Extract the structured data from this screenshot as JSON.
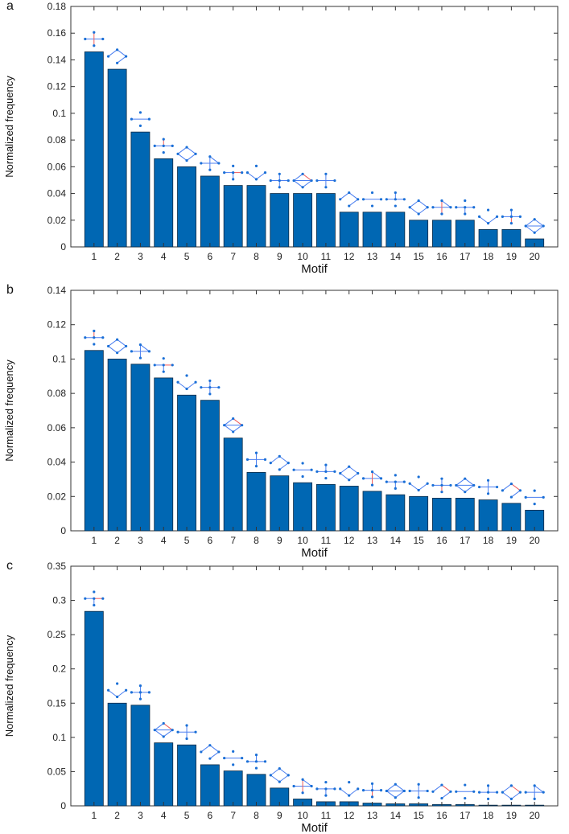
{
  "chart_data": [
    {
      "panel": "a",
      "type": "bar",
      "xlabel": "Motif",
      "ylabel": "Normalized frequency",
      "ylim": [
        0,
        0.18
      ],
      "yticks": [
        "0",
        "0.02",
        "0.04",
        "0.06",
        "0.08",
        "0.1",
        "0.12",
        "0.14",
        "0.16",
        "0.18"
      ],
      "categories": [
        "1",
        "2",
        "3",
        "4",
        "5",
        "6",
        "7",
        "8",
        "9",
        "10",
        "11",
        "12",
        "13",
        "14",
        "15",
        "16",
        "17",
        "18",
        "19",
        "20"
      ],
      "values": [
        0.146,
        0.133,
        0.086,
        0.066,
        0.06,
        0.053,
        0.046,
        0.046,
        0.04,
        0.04,
        0.04,
        0.026,
        0.026,
        0.026,
        0.02,
        0.02,
        0.02,
        0.013,
        0.013,
        0.006
      ]
    },
    {
      "panel": "b",
      "type": "bar",
      "xlabel": "Motif",
      "ylabel": "Normalized frequency",
      "ylim": [
        0,
        0.14
      ],
      "yticks": [
        "0",
        "0.02",
        "0.04",
        "0.06",
        "0.08",
        "0.1",
        "0.12",
        "0.14"
      ],
      "categories": [
        "1",
        "2",
        "3",
        "4",
        "5",
        "6",
        "7",
        "8",
        "9",
        "10",
        "11",
        "12",
        "13",
        "14",
        "15",
        "16",
        "17",
        "18",
        "19",
        "20"
      ],
      "values": [
        0.105,
        0.1,
        0.097,
        0.089,
        0.079,
        0.076,
        0.054,
        0.034,
        0.032,
        0.028,
        0.027,
        0.026,
        0.023,
        0.021,
        0.02,
        0.019,
        0.019,
        0.018,
        0.016,
        0.012
      ]
    },
    {
      "panel": "c",
      "type": "bar",
      "xlabel": "Motif",
      "ylabel": "Normalized frequency",
      "ylim": [
        0,
        0.35
      ],
      "yticks": [
        "0",
        "0.05",
        "0.1",
        "0.15",
        "0.2",
        "0.25",
        "0.3",
        "0.35"
      ],
      "categories": [
        "1",
        "2",
        "3",
        "4",
        "5",
        "6",
        "7",
        "8",
        "9",
        "10",
        "11",
        "12",
        "13",
        "14",
        "15",
        "16",
        "17",
        "18",
        "19",
        "20"
      ],
      "values": [
        0.284,
        0.15,
        0.147,
        0.092,
        0.089,
        0.06,
        0.051,
        0.046,
        0.026,
        0.01,
        0.006,
        0.006,
        0.004,
        0.003,
        0.003,
        0.002,
        0.002,
        0.001,
        0.001,
        0.001
      ]
    }
  ],
  "colors": {
    "bar": "#0067b3",
    "bar_edge": "#0a2a45",
    "axis": "#333333",
    "motif_node": "#1a6fd6",
    "motif_edge": "#4a7ef0",
    "motif_edge_alt": "#ef5b5b"
  }
}
